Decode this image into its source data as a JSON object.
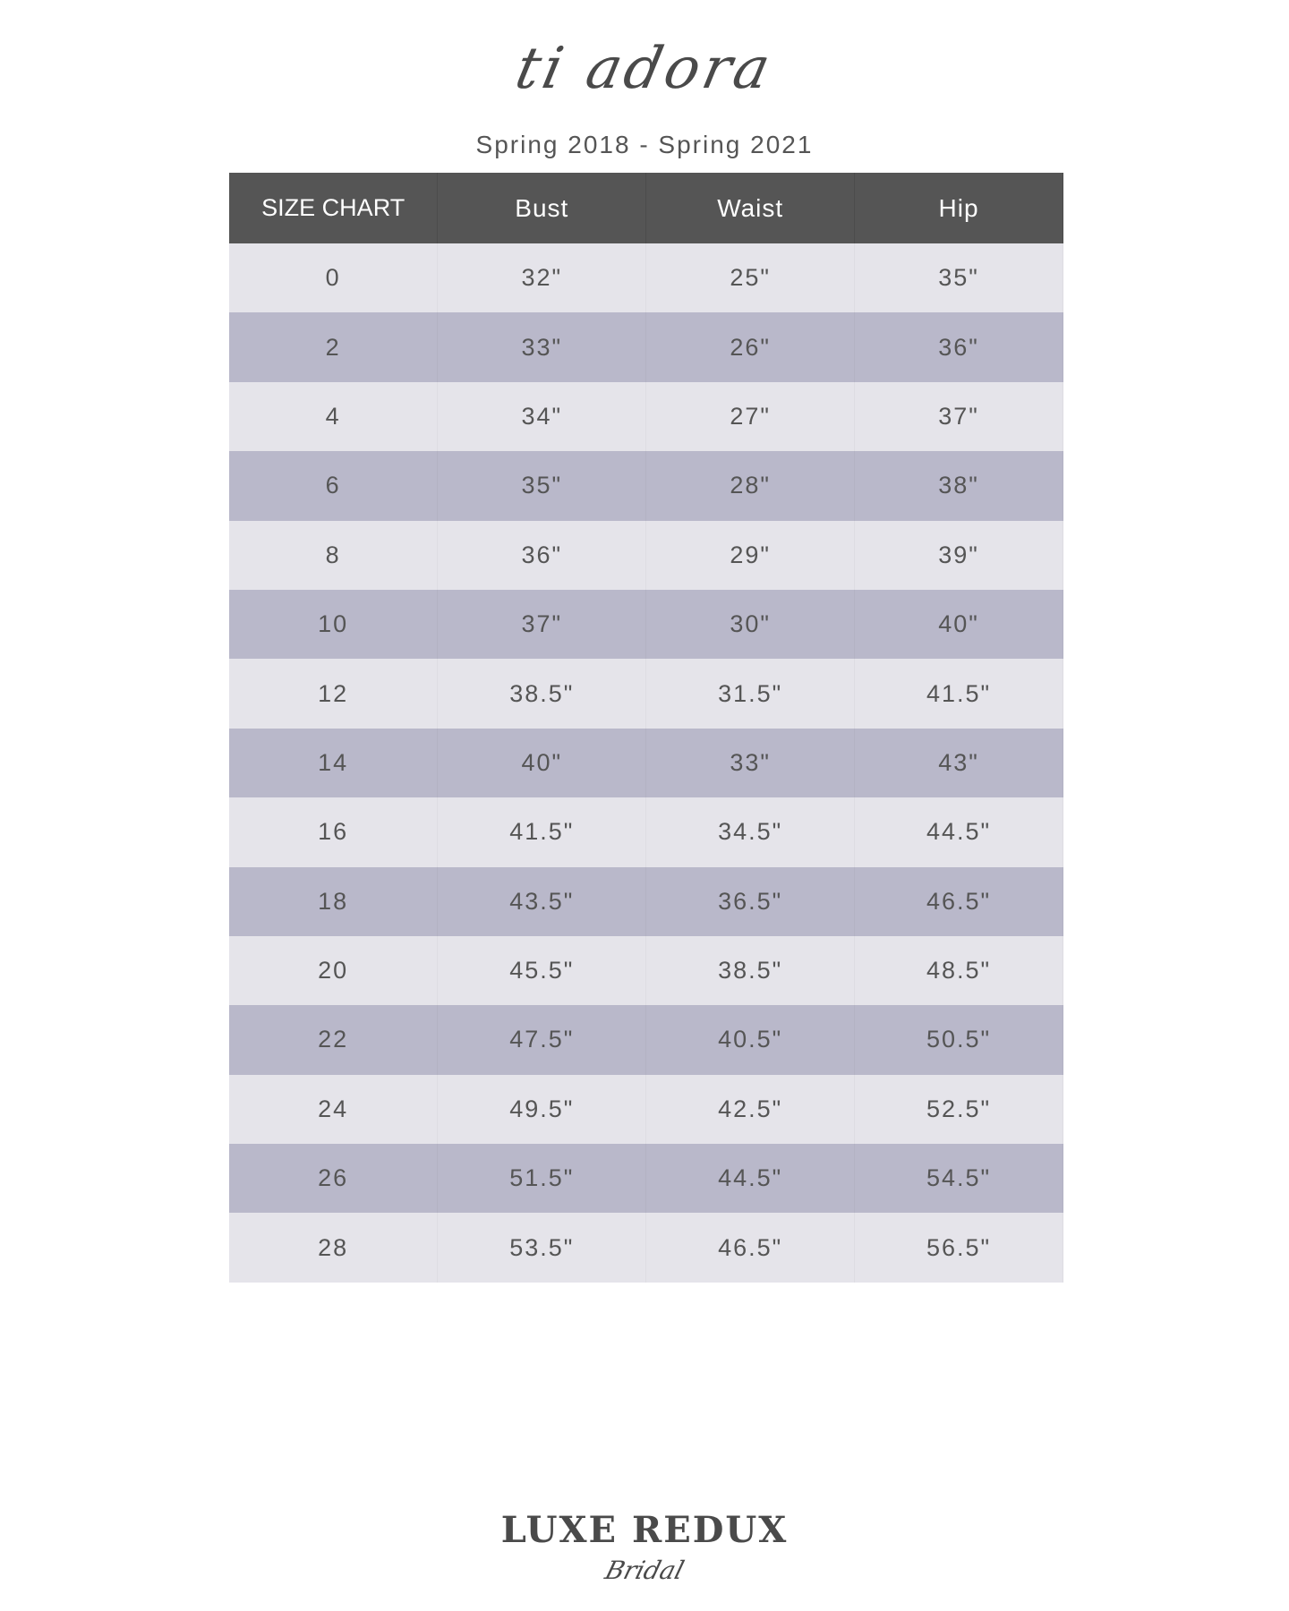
{
  "brand": "ti adora",
  "subtitle": "Spring 2018 - Spring 2021",
  "table": {
    "headers": [
      "SIZE CHART",
      "Bust",
      "Waist",
      "Hip"
    ],
    "rows": [
      [
        "0",
        "32\"",
        "25\"",
        "35\""
      ],
      [
        "2",
        "33\"",
        "26\"",
        "36\""
      ],
      [
        "4",
        "34\"",
        "27\"",
        "37\""
      ],
      [
        "6",
        "35\"",
        "28\"",
        "38\""
      ],
      [
        "8",
        "36\"",
        "29\"",
        "39\""
      ],
      [
        "10",
        "37\"",
        "30\"",
        "40\""
      ],
      [
        "12",
        "38.5\"",
        "31.5\"",
        "41.5\""
      ],
      [
        "14",
        "40\"",
        "33\"",
        "43\""
      ],
      [
        "16",
        "41.5\"",
        "34.5\"",
        "44.5\""
      ],
      [
        "18",
        "43.5\"",
        "36.5\"",
        "46.5\""
      ],
      [
        "20",
        "45.5\"",
        "38.5\"",
        "48.5\""
      ],
      [
        "22",
        "47.5\"",
        "40.5\"",
        "50.5\""
      ],
      [
        "24",
        "49.5\"",
        "42.5\"",
        "52.5\""
      ],
      [
        "26",
        "51.5\"",
        "44.5\"",
        "54.5\""
      ],
      [
        "28",
        "53.5\"",
        "46.5\"",
        "56.5\""
      ]
    ]
  },
  "colors": {
    "header": "#555555",
    "row_light": "#e5e4ea",
    "row_dark": "#b9b8ca"
  },
  "footer_logo": {
    "main": "LUXE REDUX",
    "sub": "Bridal"
  }
}
